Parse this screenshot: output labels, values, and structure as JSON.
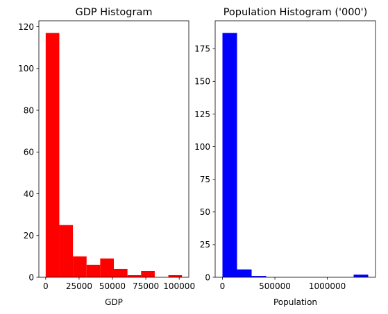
{
  "chart_data": [
    {
      "type": "bar",
      "title": "GDP Histogram",
      "xlabel": "GDP",
      "ylabel": "",
      "color": "#ff0000",
      "bin_edges": [
        0,
        10208,
        20416,
        30624,
        40832,
        51040,
        61248,
        71456,
        81664,
        91872,
        102080
      ],
      "values": [
        117,
        25,
        10,
        6,
        9,
        4,
        1,
        3,
        0,
        1
      ],
      "xlim": [
        -5104,
        107184
      ],
      "ylim": [
        0,
        122.85
      ],
      "xticks": [
        0,
        25000,
        50000,
        75000,
        100000
      ],
      "xtick_labels": [
        "0",
        "25000",
        "50000",
        "75000",
        "100000"
      ],
      "yticks": [
        0,
        20,
        40,
        60,
        80,
        100,
        120
      ],
      "ytick_labels": [
        "0",
        "20",
        "40",
        "60",
        "80",
        "100",
        "120"
      ]
    },
    {
      "type": "bar",
      "title": "Population Histogram ('000')",
      "xlabel": "Population",
      "ylabel": "",
      "color": "#0000ff",
      "bin_edges": [
        0,
        139000,
        278000,
        417000,
        556000,
        695000,
        834000,
        973000,
        1112000,
        1251000,
        1390000
      ],
      "values": [
        187,
        6,
        1,
        0,
        0,
        0,
        0,
        0,
        0,
        2
      ],
      "xlim": [
        -69500,
        1459500
      ],
      "ylim": [
        0,
        196.35
      ],
      "xticks": [
        0,
        500000,
        1000000
      ],
      "xtick_labels": [
        "0",
        "500000",
        "1000000"
      ],
      "yticks": [
        0,
        25,
        50,
        75,
        100,
        125,
        150,
        175
      ],
      "ytick_labels": [
        "0",
        "25",
        "50",
        "75",
        "100",
        "125",
        "150",
        "175"
      ]
    }
  ]
}
